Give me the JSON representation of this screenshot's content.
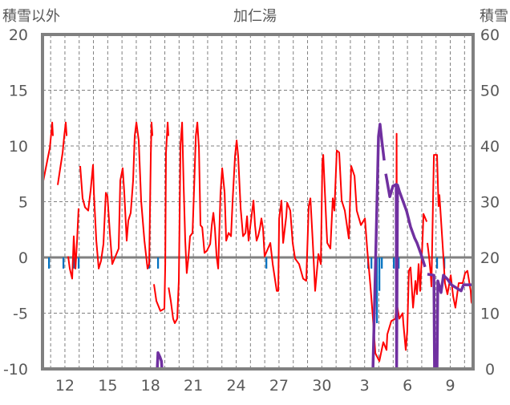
{
  "chart_data": {
    "type": "line",
    "title": "加仁湯",
    "ylabel_left": "積雪以外",
    "ylabel_right": "積雪",
    "ylim_left": [
      -10,
      20
    ],
    "ylim_right": [
      0,
      60
    ],
    "yticks_left": [
      "-10",
      "-5",
      "0",
      "5",
      "10",
      "15",
      "20"
    ],
    "yticks_right": [
      "0",
      "10",
      "20",
      "30",
      "40",
      "50",
      "60"
    ],
    "xlim_days": [
      0.43,
      30.6
    ],
    "xticks": [
      {
        "day": 2,
        "label": "12"
      },
      {
        "day": 5,
        "label": "15"
      },
      {
        "day": 8,
        "label": "18"
      },
      {
        "day": 11,
        "label": "21"
      },
      {
        "day": 14,
        "label": "24"
      },
      {
        "day": 17,
        "label": "27"
      },
      {
        "day": 20,
        "label": "30"
      },
      {
        "day": 23,
        "label": "3"
      },
      {
        "day": 26,
        "label": "6"
      },
      {
        "day": 29,
        "label": "9"
      }
    ],
    "grid": true,
    "colors": {
      "temperature": "#ff0000",
      "snow_depth": "#7030a0",
      "precipitation": "#0070c0",
      "frame": "#808080"
    },
    "series": [
      {
        "name": "temperature",
        "axis": "left",
        "points": [
          [
            0.43,
            6.5
          ],
          [
            0.6,
            7.6
          ],
          [
            0.83,
            9.1
          ],
          [
            0.94,
            9.8
          ],
          [
            1.05,
            11.2
          ],
          [
            1.11,
            12.1
          ],
          [
            1.16,
            10.9
          ],
          null,
          [
            1.5,
            6.5
          ],
          [
            1.67,
            8.0
          ],
          [
            1.84,
            9.4
          ],
          [
            1.95,
            10.9
          ],
          [
            2.06,
            12.1
          ],
          [
            2.12,
            10.9
          ],
          null,
          [
            2.23,
            0.1
          ],
          [
            2.34,
            -1.0
          ],
          [
            2.51,
            -1.9
          ],
          [
            2.62,
            1.9
          ],
          [
            2.74,
            -1.0
          ],
          [
            2.85,
            1.5
          ],
          [
            2.96,
            4.4
          ],
          null,
          [
            3.07,
            8.2
          ],
          [
            3.24,
            5.3
          ],
          [
            3.41,
            4.5
          ],
          [
            3.63,
            4.2
          ],
          [
            3.8,
            6.0
          ],
          [
            3.97,
            8.3
          ],
          [
            4.03,
            5.8
          ],
          [
            4.2,
            1.5
          ],
          [
            4.37,
            -1.0
          ],
          [
            4.53,
            -0.3
          ],
          [
            4.7,
            1.2
          ],
          [
            4.87,
            5.8
          ],
          [
            4.98,
            5.5
          ],
          [
            5.15,
            2.2
          ],
          [
            5.32,
            -0.6
          ],
          [
            5.54,
            0.1
          ],
          [
            5.77,
            0.8
          ],
          [
            5.88,
            6.9
          ],
          [
            6.05,
            8.0
          ],
          [
            6.16,
            5.8
          ],
          [
            6.33,
            1.5
          ],
          [
            6.44,
            3.3
          ],
          [
            6.61,
            4.0
          ],
          [
            6.78,
            6.9
          ],
          [
            6.89,
            10.9
          ],
          [
            7.01,
            12.1
          ],
          [
            7.17,
            10.5
          ],
          [
            7.34,
            5.1
          ],
          [
            7.57,
            1.5
          ],
          [
            7.79,
            -1.0
          ],
          [
            7.9,
            -0.6
          ],
          [
            8.02,
            9.3
          ],
          [
            8.07,
            12.1
          ],
          [
            8.13,
            10.9
          ],
          null,
          [
            8.24,
            -2.4
          ],
          [
            8.41,
            -3.9
          ],
          [
            8.69,
            -4.8
          ],
          [
            8.97,
            -4.6
          ],
          [
            9.03,
            -0.6
          ],
          [
            9.08,
            9.4
          ],
          [
            9.2,
            12.1
          ],
          [
            9.25,
            10.9
          ],
          null,
          [
            9.27,
            -2.7
          ],
          [
            9.42,
            -3.9
          ],
          [
            9.58,
            -5.5
          ],
          [
            9.7,
            -5.9
          ],
          [
            9.87,
            -5.5
          ],
          [
            9.98,
            -2.1
          ],
          [
            10.1,
            10.1
          ],
          [
            10.21,
            12.1
          ],
          [
            10.32,
            6.5
          ],
          [
            10.43,
            1.5
          ],
          [
            10.54,
            -1.4
          ],
          [
            10.66,
            0.1
          ],
          [
            10.77,
            1.9
          ],
          [
            10.94,
            2.2
          ],
          [
            11.06,
            6.5
          ],
          [
            11.17,
            10.9
          ],
          [
            11.28,
            12.1
          ],
          [
            11.39,
            9.8
          ],
          [
            11.5,
            2.9
          ],
          [
            11.62,
            2.7
          ],
          [
            11.78,
            0.4
          ],
          [
            11.95,
            0.6
          ],
          [
            12.18,
            1.2
          ],
          [
            12.29,
            2.9
          ],
          [
            12.4,
            4.0
          ],
          [
            12.51,
            2.6
          ],
          [
            12.63,
            0.1
          ],
          [
            12.74,
            -1.0
          ],
          [
            12.9,
            5.8
          ],
          [
            13.02,
            8.0
          ],
          [
            13.19,
            5.8
          ],
          [
            13.3,
            1.5
          ],
          [
            13.47,
            2.2
          ],
          [
            13.64,
            1.9
          ],
          [
            13.75,
            5.1
          ],
          [
            13.92,
            9.1
          ],
          [
            14.03,
            10.5
          ],
          [
            14.14,
            9.1
          ],
          [
            14.31,
            4.4
          ],
          [
            14.48,
            1.9
          ],
          [
            14.65,
            2.2
          ],
          [
            14.76,
            3.7
          ],
          [
            14.87,
            1.5
          ],
          [
            15.04,
            3.3
          ],
          [
            15.21,
            5.1
          ],
          [
            15.32,
            2.9
          ],
          [
            15.43,
            1.5
          ],
          [
            15.54,
            1.9
          ],
          [
            15.66,
            2.6
          ],
          [
            15.77,
            3.5
          ],
          [
            15.88,
            2.6
          ],
          [
            15.99,
            0.1
          ],
          [
            16.39,
            1.3
          ],
          [
            16.56,
            -0.6
          ],
          [
            16.84,
            -3.0
          ],
          [
            16.95,
            -3.0
          ],
          [
            17.01,
            3.5
          ],
          [
            17.17,
            5.1
          ],
          [
            17.29,
            1.3
          ],
          [
            17.51,
            3.7
          ],
          [
            17.57,
            4.9
          ],
          [
            17.79,
            4.2
          ],
          [
            17.96,
            1.3
          ],
          [
            18.13,
            -0.1
          ],
          [
            18.41,
            -0.6
          ],
          [
            18.69,
            -1.9
          ],
          [
            18.91,
            -2.1
          ],
          [
            19.08,
            4.6
          ],
          [
            19.2,
            5.3
          ],
          [
            19.37,
            1.3
          ],
          [
            19.53,
            -3.0
          ],
          [
            19.76,
            0.3
          ],
          [
            19.93,
            -0.6
          ],
          [
            20.04,
            8.5
          ],
          [
            20.1,
            9.2
          ],
          [
            20.32,
            2.9
          ],
          [
            20.38,
            1.3
          ],
          [
            20.6,
            0.8
          ],
          [
            20.77,
            5.3
          ],
          [
            20.88,
            4.2
          ],
          [
            21.05,
            9.6
          ],
          [
            21.22,
            9.4
          ],
          [
            21.39,
            5.1
          ],
          [
            21.61,
            4.2
          ],
          [
            21.89,
            1.7
          ],
          [
            22.06,
            8.2
          ],
          [
            22.29,
            7.3
          ],
          [
            22.45,
            4.2
          ],
          [
            22.74,
            2.9
          ],
          [
            23.02,
            3.5
          ],
          [
            23.19,
            0.6
          ],
          [
            23.41,
            -2.6
          ],
          [
            23.58,
            -5.5
          ],
          [
            23.75,
            -8.6
          ],
          [
            24.03,
            -9.3
          ],
          [
            24.31,
            -7.6
          ],
          [
            24.53,
            -8.3
          ],
          [
            24.59,
            -6.9
          ],
          [
            24.87,
            -5.7
          ],
          [
            25.15,
            -5.5
          ],
          [
            25.21,
            -4.2
          ],
          [
            25.24,
            11.1
          ],
          [
            25.26,
            -4.2
          ],
          [
            25.43,
            -5.5
          ],
          [
            25.66,
            -5.0
          ],
          [
            25.71,
            -5.9
          ],
          [
            25.88,
            -8.3
          ],
          [
            25.99,
            -6.6
          ],
          [
            26.1,
            -1.2
          ],
          [
            26.22,
            -0.9
          ],
          [
            26.39,
            -4.5
          ],
          [
            26.56,
            -2.1
          ],
          [
            26.67,
            -3.3
          ],
          [
            26.78,
            -0.6
          ],
          [
            26.89,
            -3.0
          ],
          [
            27.06,
            1.7
          ],
          [
            27.12,
            3.9
          ],
          [
            27.35,
            3.2
          ],
          null,
          [
            27.4,
            1.3
          ],
          [
            27.51,
            0.1
          ],
          [
            27.62,
            -1.4
          ],
          [
            27.68,
            -2.6
          ],
          [
            27.85,
            9.2
          ],
          [
            28.07,
            9.2
          ],
          [
            28.18,
            4.6
          ],
          [
            28.24,
            5.6
          ],
          [
            28.47,
            1.0
          ],
          [
            28.63,
            -2.3
          ],
          [
            28.8,
            -3.3
          ],
          [
            29.03,
            -1.6
          ],
          [
            29.2,
            -3.5
          ],
          [
            29.36,
            -4.5
          ],
          [
            29.59,
            -2.3
          ],
          [
            29.87,
            -2.3
          ],
          [
            30.04,
            -1.4
          ],
          [
            30.2,
            -1.2
          ],
          [
            30.43,
            -3.0
          ],
          [
            30.48,
            -4.0
          ],
          [
            30.65,
            -4.5
          ]
        ]
      },
      {
        "name": "snow_depth",
        "axis": "right",
        "points": [
          [
            0.43,
            0
          ],
          [
            8.47,
            0
          ],
          [
            8.52,
            2.9
          ],
          [
            8.65,
            2.2
          ],
          [
            8.76,
            1.4
          ],
          [
            8.8,
            0
          ],
          [
            23.58,
            0
          ],
          [
            23.8,
            23
          ],
          [
            23.97,
            41.7
          ],
          [
            24.08,
            43.9
          ],
          [
            24.2,
            41
          ],
          [
            24.37,
            37.4
          ],
          null,
          [
            24.48,
            35
          ],
          [
            24.76,
            30.9
          ],
          [
            24.98,
            32.8
          ],
          [
            25.21,
            33.1
          ],
          [
            25.24,
            0
          ],
          [
            25.3,
            33
          ],
          [
            25.43,
            31.9
          ],
          [
            25.94,
            28.3
          ],
          [
            26.22,
            25.5
          ],
          [
            26.5,
            23.5
          ],
          [
            26.67,
            22.6
          ],
          [
            26.95,
            20.6
          ],
          [
            27.23,
            18.3
          ],
          null,
          [
            27.4,
            17
          ],
          [
            27.85,
            16.8
          ],
          [
            27.9,
            0
          ],
          [
            28.07,
            0
          ],
          [
            28.13,
            15.8
          ],
          [
            28.35,
            13.7
          ],
          [
            28.52,
            16.8
          ],
          [
            28.8,
            16.1
          ],
          [
            29.08,
            15.1
          ],
          [
            29.76,
            14
          ],
          [
            29.93,
            15.1
          ],
          [
            30.6,
            15.1
          ]
        ]
      },
      {
        "name": "precipitation",
        "axis": "left",
        "direction": "down",
        "points": [
          [
            0.88,
            1
          ],
          [
            1.89,
            1
          ],
          [
            2.62,
            1
          ],
          [
            2.96,
            1
          ],
          [
            7.9,
            1
          ],
          [
            8.52,
            1
          ],
          [
            16.11,
            1
          ],
          [
            23.24,
            1
          ],
          [
            23.47,
            1
          ],
          [
            23.75,
            1.5
          ],
          [
            23.86,
            5.9
          ],
          [
            24.03,
            3.0
          ],
          [
            24.2,
            1
          ],
          [
            25.04,
            1
          ],
          [
            25.38,
            1
          ],
          [
            28.07,
            1
          ],
          [
            28.58,
            1
          ]
        ]
      }
    ]
  }
}
